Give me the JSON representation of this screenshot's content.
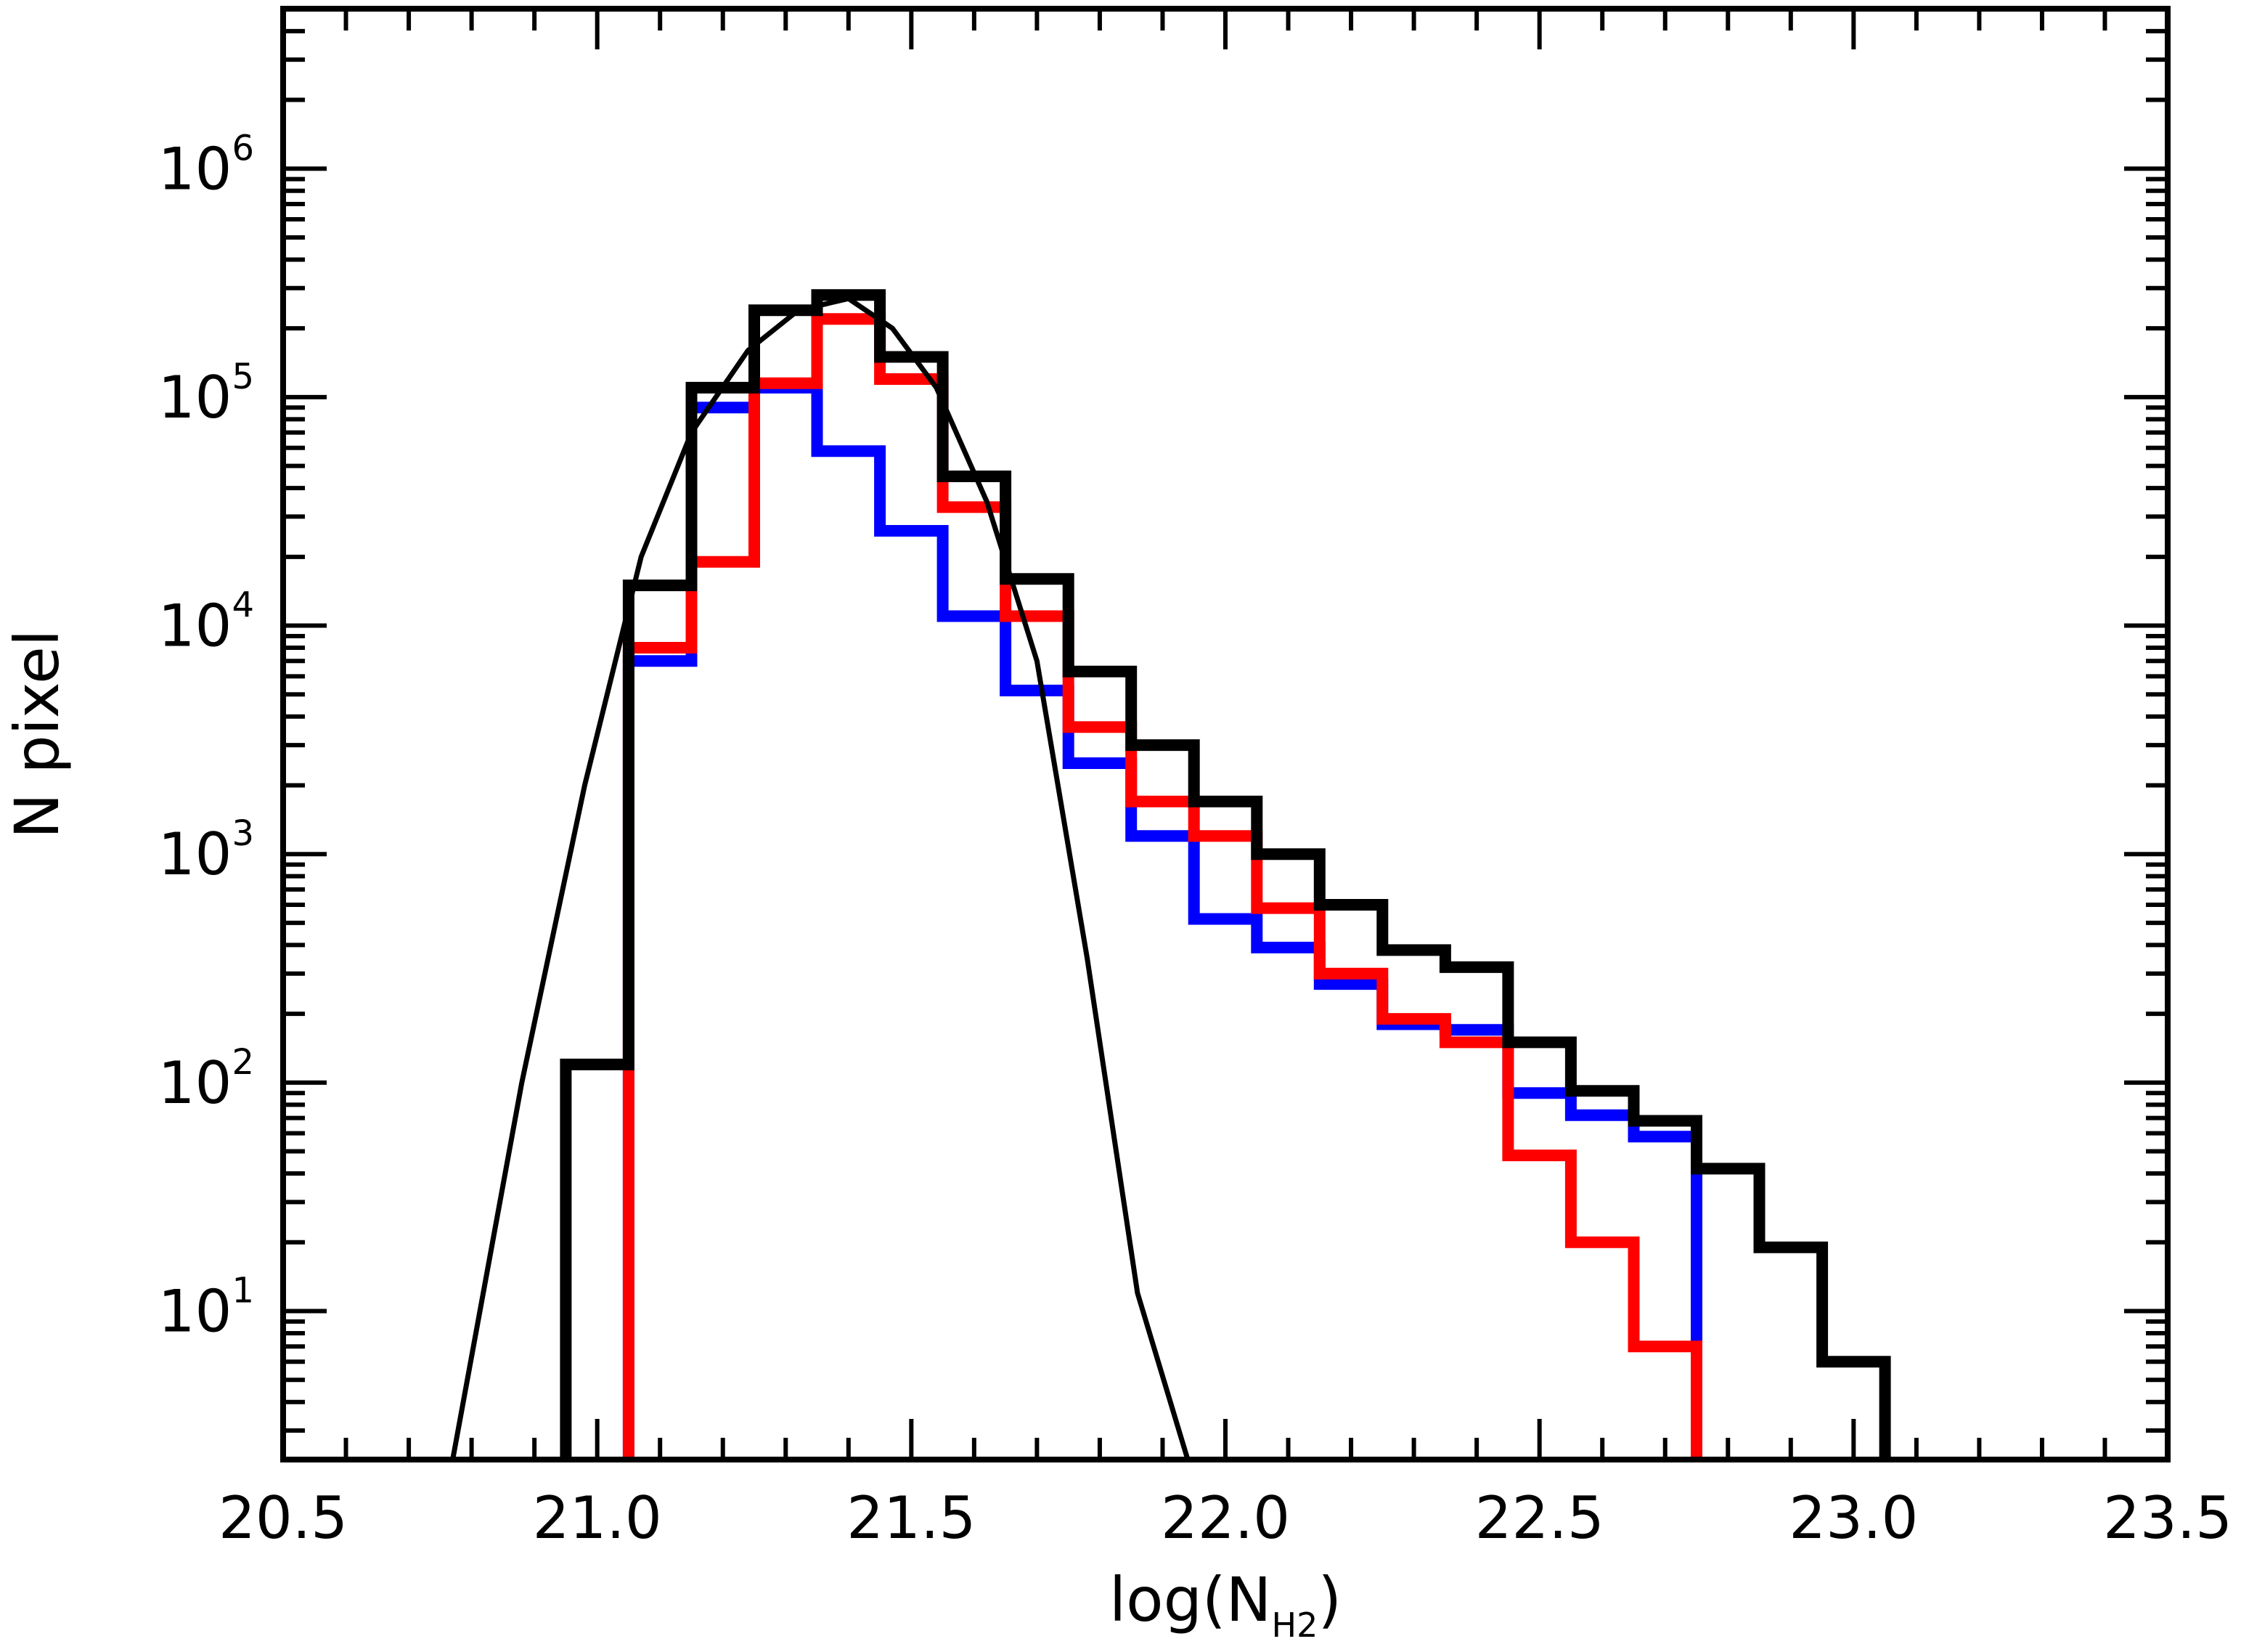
{
  "chart_data": {
    "type": "line",
    "title": "",
    "xlabel": "log(N",
    "xlabel_sub": "H2",
    "xlabel_close": ")",
    "ylabel": "N pixel",
    "xlim": [
      20.5,
      23.5
    ],
    "ylim_log10": [
      0.35,
      6.7
    ],
    "yscale": "log",
    "grid": false,
    "legend": "none",
    "x_ticks": [
      "20.5",
      "21.0",
      "21.5",
      "22.0",
      "22.5",
      "23.0",
      "23.5"
    ],
    "y_ticks": [
      {
        "base": "10",
        "exp": "1"
      },
      {
        "base": "10",
        "exp": "2"
      },
      {
        "base": "10",
        "exp": "3"
      },
      {
        "base": "10",
        "exp": "4"
      },
      {
        "base": "10",
        "exp": "5"
      },
      {
        "base": "10",
        "exp": "6"
      }
    ],
    "bin_edges": [
      20.95,
      21.05,
      21.15,
      21.25,
      21.35,
      21.45,
      21.55,
      21.65,
      21.75,
      21.85,
      21.95,
      22.05,
      22.15,
      22.25,
      22.35,
      22.45,
      22.55,
      22.65,
      22.75,
      22.85,
      22.95,
      23.05
    ],
    "series": [
      {
        "color": "#0000ff",
        "values": [
          null,
          7000,
          90000,
          110000,
          58000,
          26000,
          11000,
          5200,
          2500,
          1200,
          520,
          390,
          270,
          180,
          170,
          90,
          72,
          58,
          null,
          null,
          null
        ]
      },
      {
        "color": "#ff0000",
        "values": [
          null,
          8000,
          19000,
          115000,
          220000,
          120000,
          33000,
          11000,
          3600,
          1700,
          1200,
          580,
          300,
          190,
          150,
          48,
          20,
          7,
          null,
          null,
          null
        ]
      },
      {
        "color": "#000000",
        "values": [
          120,
          15000,
          110000,
          240000,
          280000,
          150000,
          45000,
          16000,
          6300,
          3000,
          1700,
          1000,
          600,
          380,
          320,
          150,
          92,
          68,
          42,
          19,
          6
        ]
      }
    ],
    "fit_curve": {
      "color": "#000000",
      "x": [
        20.77,
        20.88,
        20.98,
        21.07,
        21.15,
        21.24,
        21.32,
        21.4,
        21.47,
        21.54,
        21.62,
        21.7,
        21.78,
        21.86,
        21.94
      ],
      "values": [
        2,
        100,
        2000,
        20000,
        70000,
        160000,
        240000,
        270000,
        200000,
        110000,
        35000,
        7000,
        350,
        12,
        2
      ]
    }
  }
}
